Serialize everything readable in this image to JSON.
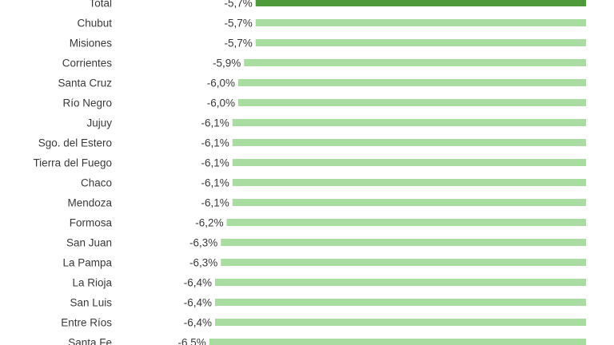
{
  "chart_data": {
    "type": "bar",
    "orientation": "horizontal",
    "categories": [
      "Total",
      "Chubut",
      "Misiones",
      "Corrientes",
      "Santa Cruz",
      "Río Negro",
      "Jujuy",
      "Sgo. del Estero",
      "Tierra del Fuego",
      "Chaco",
      "Mendoza",
      "Formosa",
      "San Juan",
      "La Pampa",
      "La Rioja",
      "San Luis",
      "Entre Ríos",
      "Santa Fe"
    ],
    "values": [
      -5.7,
      -5.7,
      -5.7,
      -5.9,
      -6.0,
      -6.0,
      -6.1,
      -6.1,
      -6.1,
      -6.1,
      -6.1,
      -6.2,
      -6.3,
      -6.3,
      -6.4,
      -6.4,
      -6.4,
      -6.5
    ],
    "value_labels": [
      "-5,7%",
      "-5,7%",
      "-5,7%",
      "-5,9%",
      "-6,0%",
      "-6,0%",
      "-6,1%",
      "-6,1%",
      "-6,1%",
      "-6,1%",
      "-6,1%",
      "-6,2%",
      "-6,3%",
      "-6,3%",
      "-6,4%",
      "-6,4%",
      "-6,4%",
      "-6,5%"
    ],
    "highlight_category": "Total",
    "colors": {
      "highlight": "#4f9a3a",
      "bar": "#a8dca0"
    },
    "grid": false,
    "title": "",
    "xlabel": "",
    "ylabel": ""
  }
}
